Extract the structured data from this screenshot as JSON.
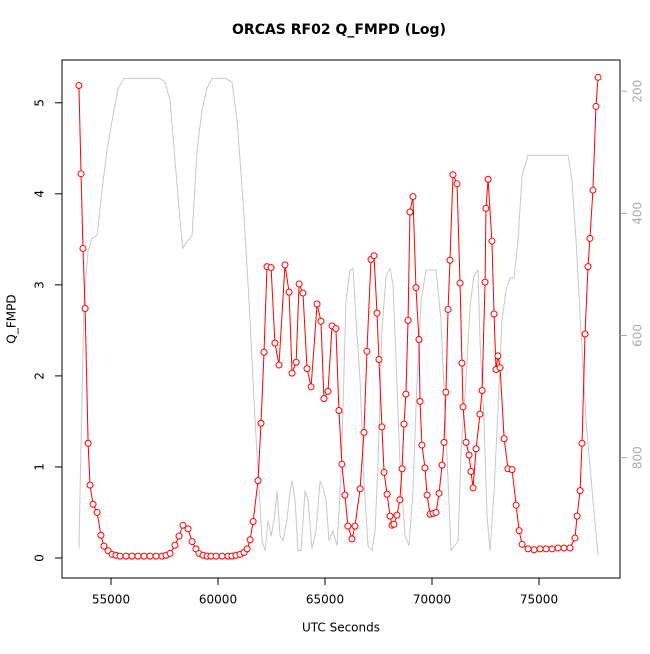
{
  "chart_data": {
    "type": "line",
    "title": "ORCAS RF02 Q_FMPD (Log)",
    "x_label": "UTC Seconds",
    "y_label": "Q_FMPD",
    "xlim": [
      52710,
      78785
    ],
    "xticks": [
      55000,
      60000,
      65000,
      70000,
      75000
    ],
    "ylim": [
      -0.22,
      5.47
    ],
    "yticks": [
      0,
      1,
      2,
      3,
      4,
      5
    ],
    "y2lim": [
      997,
      149
    ],
    "y2ticks": [
      200,
      400,
      600,
      800
    ],
    "y2_color": "#aaaaaa",
    "grid": false,
    "series": [
      {
        "color": "#ff0000",
        "marker": "circle",
        "x": [
          53500,
          53600,
          53690,
          53790,
          53930,
          54020,
          54160,
          54350,
          54530,
          54670,
          54860,
          55050,
          55230,
          55420,
          55700,
          55980,
          56260,
          56540,
          56820,
          57100,
          57380,
          57570,
          57760,
          57990,
          58180,
          58360,
          58600,
          58790,
          58970,
          59110,
          59300,
          59490,
          59670,
          59910,
          60190,
          60470,
          60650,
          60840,
          61030,
          61220,
          61360,
          61500,
          61640,
          61870,
          62010,
          62150,
          62290,
          62480,
          62660,
          62850,
          63130,
          63320,
          63460,
          63650,
          63790,
          63970,
          64160,
          64350,
          64630,
          64810,
          64950,
          65140,
          65330,
          65510,
          65650,
          65790,
          65930,
          66070,
          66260,
          66400,
          66640,
          66820,
          66960,
          67150,
          67290,
          67430,
          67520,
          67660,
          67760,
          67900,
          68040,
          68130,
          68220,
          68360,
          68500,
          68600,
          68690,
          68780,
          68880,
          68970,
          69110,
          69250,
          69390,
          69440,
          69530,
          69670,
          69770,
          69910,
          70050,
          70190,
          70330,
          70470,
          70560,
          70650,
          70750,
          70840,
          70980,
          71170,
          71310,
          71400,
          71450,
          71590,
          71730,
          71820,
          71920,
          72060,
          72240,
          72340,
          72480,
          72520,
          72620,
          72800,
          72900,
          72990,
          73080,
          73180,
          73370,
          73550,
          73740,
          73930,
          74070,
          74210,
          74490,
          74770,
          75050,
          75330,
          75610,
          75890,
          76170,
          76450,
          76680,
          76780,
          76920,
          77010,
          77150,
          77290,
          77380,
          77520,
          77660,
          77760
        ],
        "values": [
          5.19,
          4.22,
          3.4,
          2.74,
          1.26,
          0.8,
          0.59,
          0.5,
          0.25,
          0.13,
          0.08,
          0.04,
          0.03,
          0.02,
          0.02,
          0.02,
          0.02,
          0.02,
          0.02,
          0.02,
          0.02,
          0.03,
          0.05,
          0.14,
          0.24,
          0.36,
          0.32,
          0.18,
          0.1,
          0.05,
          0.03,
          0.02,
          0.02,
          0.02,
          0.02,
          0.02,
          0.02,
          0.03,
          0.04,
          0.06,
          0.1,
          0.2,
          0.4,
          0.85,
          1.48,
          2.26,
          3.2,
          3.19,
          2.36,
          2.12,
          3.22,
          2.92,
          2.03,
          2.15,
          3.01,
          2.91,
          2.08,
          1.88,
          2.79,
          2.6,
          1.75,
          1.83,
          2.55,
          2.52,
          1.62,
          1.03,
          0.69,
          0.35,
          0.21,
          0.35,
          0.76,
          1.38,
          2.27,
          3.28,
          3.32,
          2.69,
          2.18,
          1.44,
          0.94,
          0.7,
          0.46,
          0.36,
          0.37,
          0.47,
          0.64,
          0.98,
          1.47,
          1.8,
          2.61,
          3.8,
          3.97,
          2.97,
          2.4,
          1.72,
          1.24,
          0.99,
          0.69,
          0.48,
          0.49,
          0.5,
          0.71,
          1.02,
          1.27,
          1.82,
          2.73,
          3.27,
          4.21,
          4.11,
          3.02,
          2.14,
          1.66,
          1.27,
          1.13,
          0.95,
          0.77,
          1.2,
          1.58,
          1.84,
          3.03,
          3.84,
          4.16,
          3.48,
          2.68,
          2.07,
          2.22,
          2.09,
          1.31,
          0.98,
          0.97,
          0.58,
          0.3,
          0.15,
          0.1,
          0.09,
          0.1,
          0.1,
          0.1,
          0.11,
          0.11,
          0.11,
          0.22,
          0.46,
          0.74,
          1.26,
          2.46,
          3.2,
          3.51,
          4.04,
          4.96,
          5.28
        ]
      },
      {
        "color": "#c8c8c8",
        "axis": "y2",
        "x": [
          53500,
          53740,
          53930,
          54110,
          54350,
          54580,
          54810,
          55050,
          55330,
          55610,
          57290,
          57520,
          57760,
          57990,
          58220,
          58360,
          58600,
          58790,
          59020,
          59250,
          59490,
          59720,
          60330,
          60650,
          60890,
          61170,
          61450,
          61730,
          62060,
          62200,
          62340,
          62480,
          62620,
          62760,
          62900,
          63040,
          63220,
          63370,
          63460,
          63600,
          63740,
          63880,
          64070,
          64210,
          64390,
          64580,
          64770,
          64950,
          65050,
          65190,
          65370,
          65560,
          65750,
          65980,
          66170,
          66310,
          66450,
          66640,
          66820,
          67010,
          67200,
          67340,
          67480,
          67660,
          67850,
          68040,
          68180,
          68320,
          68500,
          68740,
          68930,
          69110,
          69300,
          69490,
          69720,
          70190,
          70420,
          70650,
          70890,
          71080,
          71220,
          71360,
          71590,
          71780,
          71960,
          72150,
          72240,
          72430,
          72570,
          72710,
          72900,
          73080,
          73270,
          73460,
          73650,
          73830,
          74020,
          74210,
          74490,
          76360,
          76540,
          76730,
          76960,
          77200,
          77480,
          77760
        ],
        "values": [
          949,
          543,
          461,
          441,
          436,
          362,
          297,
          248,
          195,
          179,
          179,
          185,
          215,
          313,
          411,
          457,
          444,
          436,
          297,
          231,
          195,
          179,
          179,
          185,
          248,
          379,
          543,
          739,
          936,
          952,
          903,
          928,
          903,
          854,
          928,
          936,
          903,
          854,
          838,
          870,
          952,
          952,
          854,
          870,
          949,
          920,
          838,
          854,
          870,
          936,
          920,
          944,
          829,
          543,
          493,
          490,
          575,
          674,
          838,
          944,
          952,
          920,
          805,
          592,
          502,
          490,
          518,
          641,
          805,
          928,
          944,
          854,
          674,
          543,
          493,
          493,
          575,
          756,
          952,
          944,
          936,
          788,
          674,
          551,
          502,
          493,
          608,
          739,
          895,
          952,
          854,
          723,
          575,
          526,
          506,
          506,
          444,
          338,
          305,
          305,
          346,
          444,
          592,
          739,
          854,
          960
        ]
      }
    ]
  }
}
